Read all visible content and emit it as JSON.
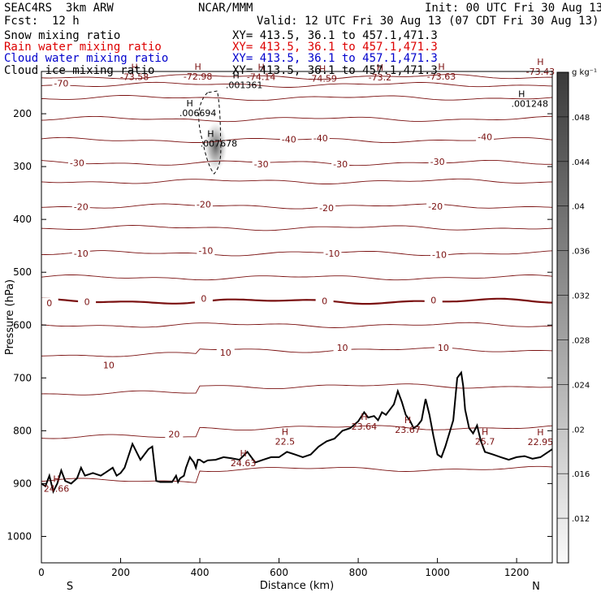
{
  "header": {
    "model": "SEAC4RS  3km ARW",
    "center": "NCAR/MMM",
    "init": "Init: 00 UTC Fri 30 Aug 13",
    "fcst": "Fcst:  12 h",
    "valid": "Valid: 12 UTC Fri 30 Aug 13 (07 CDT Fri 30 Aug 13)",
    "fields": [
      {
        "name": "Snow mixing ratio",
        "xy": "XY= 413.5, 36.1 to 457.1,471.3",
        "color": "#000000"
      },
      {
        "name": "Rain water mixing ratio",
        "xy": "XY= 413.5, 36.1 to 457.1,471.3",
        "color": "#dd0000"
      },
      {
        "name": "Cloud water mixing ratio",
        "xy": "XY= 413.5, 36.1 to 457.1,471.3",
        "color": "#0000cc"
      },
      {
        "name": "Cloud ice mixing ratio",
        "xy": "XY= 413.5, 36.1 to 457.1,471.3",
        "color": "#000000"
      }
    ]
  },
  "chart_data": {
    "type": "line",
    "xlabel": "Distance (km)",
    "ylabel": "Pressure (hPa)",
    "xlim": [
      0,
      1290
    ],
    "ylim": [
      1050,
      120
    ],
    "x_ticks": [
      "0",
      "200",
      "400",
      "600",
      "800",
      "1000",
      "1200"
    ],
    "y_ticks": [
      "200",
      "300",
      "400",
      "500",
      "600",
      "700",
      "800",
      "900",
      "1000"
    ],
    "x_end_labels": {
      "left": "S",
      "right": "N"
    },
    "contour_color": "#7a1010",
    "contour_levels": [
      -80,
      -70,
      -60,
      -50,
      -40,
      -30,
      -25,
      -20,
      -15,
      -10,
      -5,
      0,
      5,
      10,
      15,
      20,
      25
    ],
    "contour_labels": [
      {
        "text": "-70",
        "x": 50,
        "p": 142
      },
      {
        "text": "-40",
        "x": 625,
        "p": 248
      },
      {
        "text": "-40",
        "x": 705,
        "p": 246
      },
      {
        "text": "-40",
        "x": 1120,
        "p": 244
      },
      {
        "text": "-30",
        "x": 90,
        "p": 293
      },
      {
        "text": "-30",
        "x": 555,
        "p": 295
      },
      {
        "text": "-30",
        "x": 755,
        "p": 295
      },
      {
        "text": "-30",
        "x": 1000,
        "p": 291
      },
      {
        "text": "-20",
        "x": 100,
        "p": 376
      },
      {
        "text": "-20",
        "x": 410,
        "p": 371
      },
      {
        "text": "-20",
        "x": 720,
        "p": 378
      },
      {
        "text": "-20",
        "x": 995,
        "p": 375
      },
      {
        "text": "-10",
        "x": 100,
        "p": 464
      },
      {
        "text": "-10",
        "x": 415,
        "p": 459
      },
      {
        "text": "-10",
        "x": 735,
        "p": 464
      },
      {
        "text": "-10",
        "x": 1005,
        "p": 467
      },
      {
        "text": "0",
        "x": 20,
        "p": 558
      },
      {
        "text": "0",
        "x": 115,
        "p": 556
      },
      {
        "text": "0",
        "x": 410,
        "p": 550
      },
      {
        "text": "0",
        "x": 715,
        "p": 554
      },
      {
        "text": "0",
        "x": 990,
        "p": 553
      },
      {
        "text": "10",
        "x": 465,
        "p": 652
      },
      {
        "text": "10",
        "x": 760,
        "p": 643
      },
      {
        "text": "10",
        "x": 1015,
        "p": 643
      },
      {
        "text": "10",
        "x": 170,
        "p": 676
      },
      {
        "text": "20",
        "x": 335,
        "p": 806
      }
    ],
    "extrema_labels": [
      {
        "text": "-73.58",
        "x": 235,
        "p": 127
      },
      {
        "text": "-72.98",
        "x": 395,
        "p": 126
      },
      {
        "text": "-74.14",
        "x": 555,
        "p": 127
      },
      {
        "text": "-74.59",
        "x": 710,
        "p": 130
      },
      {
        "text": "-73.2",
        "x": 855,
        "p": 128
      },
      {
        "text": "-73.63",
        "x": 1010,
        "p": 126
      },
      {
        "text": "-73.43",
        "x": 1260,
        "p": 117
      },
      {
        "text": "24.66",
        "x": 38,
        "p": 906
      },
      {
        "text": "24.63",
        "x": 510,
        "p": 858
      },
      {
        "text": "22.5",
        "x": 615,
        "p": 817
      },
      {
        "text": "23.64",
        "x": 815,
        "p": 789
      },
      {
        "text": "23.67",
        "x": 925,
        "p": 795
      },
      {
        "text": "25.7",
        "x": 1120,
        "p": 817
      },
      {
        "text": "22.95",
        "x": 1260,
        "p": 818
      }
    ],
    "mixing_maxima": [
      {
        "text": ".001361",
        "x": 512,
        "p": 142
      },
      {
        "text": ".006694",
        "x": 395,
        "p": 195
      },
      {
        "text": ".007678",
        "x": 448,
        "p": 253
      },
      {
        "text": ".001248",
        "x": 1233,
        "p": 178
      }
    ],
    "terrain": {
      "x": [
        0,
        10,
        20,
        30,
        40,
        50,
        60,
        75,
        90,
        100,
        110,
        130,
        150,
        170,
        180,
        190,
        200,
        210,
        230,
        250,
        270,
        280,
        290,
        300,
        310,
        320,
        330,
        340,
        345,
        350,
        360,
        365,
        375,
        385,
        390,
        395,
        400,
        410,
        420,
        440,
        460,
        480,
        500,
        520,
        540,
        560,
        580,
        600,
        620,
        640,
        660,
        680,
        700,
        720,
        740,
        760,
        780,
        800,
        815,
        825,
        840,
        850,
        860,
        870,
        880,
        890,
        900,
        910,
        920,
        930,
        940,
        950,
        960,
        970,
        980,
        990,
        1000,
        1010,
        1020,
        1040,
        1050,
        1060,
        1065,
        1070,
        1080,
        1090,
        1100,
        1110,
        1120,
        1140,
        1160,
        1180,
        1200,
        1220,
        1240,
        1260,
        1280,
        1290
      ],
      "p": [
        900,
        905,
        885,
        915,
        900,
        875,
        895,
        900,
        890,
        870,
        885,
        880,
        885,
        875,
        870,
        885,
        880,
        870,
        825,
        855,
        835,
        830,
        895,
        897,
        897,
        897,
        897,
        885,
        897,
        890,
        885,
        870,
        850,
        860,
        870,
        855,
        855,
        860,
        856,
        855,
        850,
        852,
        855,
        840,
        860,
        855,
        850,
        850,
        840,
        845,
        850,
        845,
        830,
        820,
        815,
        800,
        795,
        782,
        765,
        775,
        772,
        780,
        765,
        770,
        760,
        750,
        725,
        745,
        770,
        780,
        795,
        790,
        780,
        740,
        770,
        810,
        845,
        850,
        830,
        780,
        700,
        690,
        715,
        760,
        795,
        805,
        790,
        820,
        840,
        845,
        850,
        855,
        850,
        848,
        853,
        850,
        840,
        835
      ]
    },
    "colorbar": {
      "unit": "g kg⁻¹",
      "labels": [
        ".012",
        ".016",
        ".02",
        ".024",
        ".028",
        ".032",
        ".036",
        ".04",
        ".044",
        ".048"
      ]
    }
  }
}
